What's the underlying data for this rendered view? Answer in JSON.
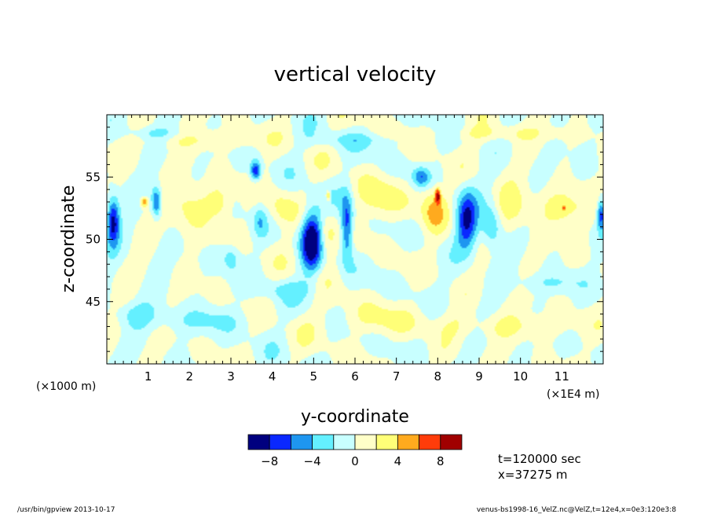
{
  "chart_data": {
    "type": "heatmap",
    "title": "vertical velocity",
    "xlabel": "y-coordinate",
    "ylabel": "z-coordinate",
    "x_unit_left": "(×1000 m)",
    "x_unit_right": "(×1E4 m)",
    "xlim": [
      0,
      12
    ],
    "ylim": [
      40,
      60
    ],
    "x_ticks": [
      "1",
      "2",
      "3",
      "4",
      "5",
      "6",
      "7",
      "8",
      "9",
      "10",
      "11"
    ],
    "y_ticks": [
      "45",
      "50",
      "55"
    ],
    "colorbar": {
      "levels": [
        -10,
        -8,
        -6,
        -4,
        -2,
        0,
        2,
        4,
        6,
        8,
        10
      ],
      "labels": [
        "−8",
        "−4",
        "0",
        "4",
        "8"
      ],
      "colors": [
        "#00007f",
        "#0a28ff",
        "#1e96f0",
        "#64f0ff",
        "#c8ffff",
        "#ffffc8",
        "#ffff78",
        "#ffaa1e",
        "#ff3c0a",
        "#a00000"
      ]
    },
    "features": [
      {
        "y": 0.15,
        "z": 51.5,
        "w": 0.15,
        "h": 3.8,
        "v": -9
      },
      {
        "y": 0.9,
        "z": 53.0,
        "w": 0.1,
        "h": 0.8,
        "v": 6
      },
      {
        "y": 1.2,
        "z": 53.0,
        "w": 0.12,
        "h": 2.5,
        "v": -7
      },
      {
        "y": 2.0,
        "z": 52.5,
        "w": 0.5,
        "h": 4.0,
        "v": 3
      },
      {
        "y": 2.7,
        "z": 53.0,
        "w": 0.3,
        "h": 2.5,
        "v": 3
      },
      {
        "y": 3.0,
        "z": 48.5,
        "w": 0.2,
        "h": 2.0,
        "v": -3
      },
      {
        "y": 3.6,
        "z": 55.5,
        "w": 0.12,
        "h": 1.5,
        "v": -8
      },
      {
        "y": 3.7,
        "z": 51.5,
        "w": 0.15,
        "h": 2.5,
        "v": -3
      },
      {
        "y": 4.2,
        "z": 52.5,
        "w": 0.3,
        "h": 3.0,
        "v": 3
      },
      {
        "y": 4.95,
        "z": 50.0,
        "w": 0.25,
        "h": 5.0,
        "v": -10
      },
      {
        "y": 5.35,
        "z": 53.5,
        "w": 0.05,
        "h": 0.8,
        "v": 6
      },
      {
        "y": 5.3,
        "z": 50.0,
        "w": 0.2,
        "h": 3.5,
        "v": 3
      },
      {
        "y": 5.8,
        "z": 51.0,
        "w": 0.15,
        "h": 5.0,
        "v": -8
      },
      {
        "y": 6.6,
        "z": 53.0,
        "w": 0.6,
        "h": 3.5,
        "v": 3
      },
      {
        "y": 7.6,
        "z": 55.0,
        "w": 0.2,
        "h": 1.5,
        "v": -5
      },
      {
        "y": 8.0,
        "z": 53.5,
        "w": 0.06,
        "h": 1.2,
        "v": 8
      },
      {
        "y": 7.9,
        "z": 52.5,
        "w": 0.3,
        "h": 4.0,
        "v": 4
      },
      {
        "y": 8.7,
        "z": 51.5,
        "w": 0.25,
        "h": 4.5,
        "v": -8
      },
      {
        "y": 9.3,
        "z": 51.0,
        "w": 0.25,
        "h": 3.5,
        "v": -5
      },
      {
        "y": 9.8,
        "z": 52.5,
        "w": 0.4,
        "h": 3.5,
        "v": 3
      },
      {
        "y": 11.0,
        "z": 52.5,
        "w": 0.6,
        "h": 3.0,
        "v": 3
      },
      {
        "y": 11.05,
        "z": 52.5,
        "w": 0.03,
        "h": 0.4,
        "v": 6
      },
      {
        "y": 11.95,
        "z": 52.0,
        "w": 0.1,
        "h": 2.5,
        "v": -7
      },
      {
        "y": 6.5,
        "z": 43.5,
        "w": 1.5,
        "h": 2.5,
        "v": 2
      },
      {
        "y": 2.3,
        "z": 43.5,
        "w": 1.2,
        "h": 2.0,
        "v": -2
      },
      {
        "y": 9.7,
        "z": 43.0,
        "w": 1.5,
        "h": 2.0,
        "v": 2
      },
      {
        "y": 0.7,
        "z": 44.0,
        "w": 0.6,
        "h": 2.0,
        "v": -2
      },
      {
        "y": 10.8,
        "z": 46.5,
        "w": 0.8,
        "h": 1.5,
        "v": -2
      },
      {
        "y": 4.3,
        "z": 46.0,
        "w": 0.8,
        "h": 1.5,
        "v": -2
      },
      {
        "y": 2.5,
        "z": 58.0,
        "w": 1.5,
        "h": 1.5,
        "v": 2
      },
      {
        "y": 6.0,
        "z": 58.0,
        "w": 1.2,
        "h": 1.2,
        "v": -2
      },
      {
        "y": 9.5,
        "z": 58.5,
        "w": 1.5,
        "h": 1.2,
        "v": 2
      },
      {
        "y": 1.2,
        "z": 58.5,
        "w": 0.8,
        "h": 1.0,
        "v": -2
      }
    ]
  },
  "annotations": {
    "time": "t=120000 sec",
    "xpos": "x=37275 m",
    "footer_left": "/usr/bin/gpview   2013-10-17",
    "footer_right": "venus-bs1998-16_VelZ.nc@VelZ,t=12e4,x=0e3:120e3:8"
  }
}
